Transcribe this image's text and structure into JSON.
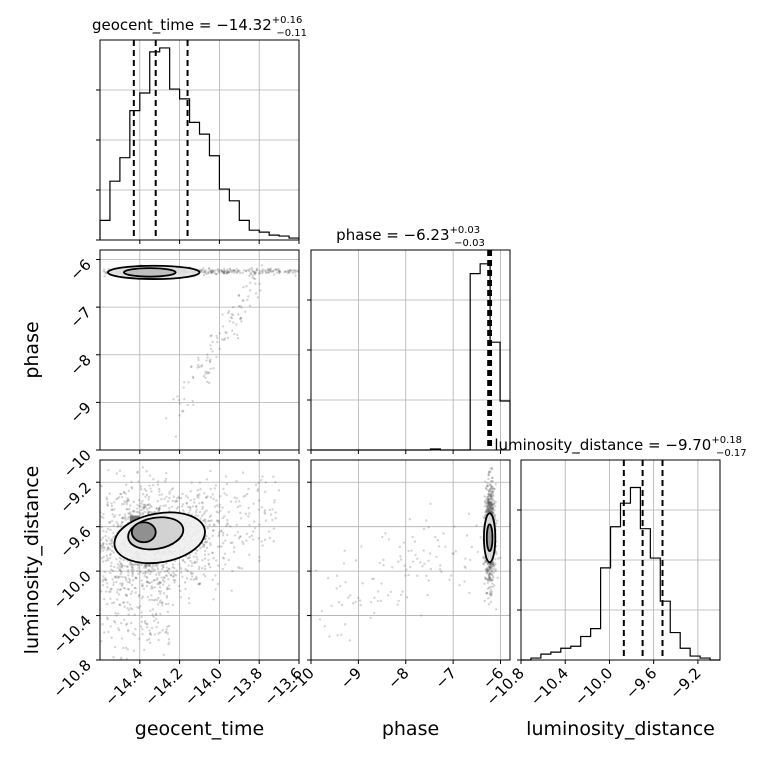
{
  "chart_data": {
    "type": "corner",
    "parameters": [
      {
        "name": "geocent_time",
        "label": "geocent_time",
        "median": "−14.32",
        "plus": "+0.16",
        "minus": "−0.11",
        "range": [
          -14.6,
          -13.6
        ],
        "ticks": [
          -14.4,
          -14.2,
          -14.0,
          -13.8,
          -13.6
        ],
        "tick_labels": [
          "−14.4",
          "−14.2",
          "−14.0",
          "−13.8",
          "−13.6"
        ],
        "quantiles": [
          -14.43,
          -14.32,
          -14.16
        ]
      },
      {
        "name": "phase",
        "label": "phase",
        "median": "−6.23",
        "plus": "+0.03",
        "minus": "−0.03",
        "range": [
          -10.0,
          -5.8
        ],
        "ticks": [
          -10,
          -9,
          -8,
          -7,
          -6
        ],
        "tick_labels": [
          "−10",
          "−9",
          "−8",
          "−7",
          "−6"
        ],
        "quantiles": [
          -6.26,
          -6.23,
          -6.2
        ]
      },
      {
        "name": "luminosity_distance",
        "label": "luminosity_distance",
        "median": "−9.70",
        "plus": "+0.18",
        "minus": "−0.17",
        "range": [
          -10.8,
          -9.0
        ],
        "ticks": [
          -10.8,
          -10.4,
          -10.0,
          -9.6,
          -9.2
        ],
        "tick_labels": [
          "−10.8",
          "−10.4",
          "−10.0",
          "−9.6",
          "−9.2"
        ],
        "quantiles": [
          -9.87,
          -9.7,
          -9.52
        ]
      }
    ],
    "histograms": {
      "geocent_time": [
        0.1,
        0.3,
        0.42,
        0.66,
        0.75,
        0.96,
        0.98,
        0.77,
        0.72,
        0.6,
        0.54,
        0.43,
        0.26,
        0.2,
        0.1,
        0.05,
        0.04,
        0.025,
        0.02,
        0.01
      ],
      "phase": [
        0,
        0,
        0,
        0,
        0,
        0,
        0,
        0,
        0,
        0,
        0,
        0,
        0.005,
        0,
        0,
        0,
        0.9,
        0.95,
        0.55,
        0.25
      ],
      "luminosity_distance": [
        0.0,
        0.01,
        0.03,
        0.04,
        0.06,
        0.07,
        0.12,
        0.16,
        0.47,
        0.68,
        0.8,
        0.88,
        0.67,
        0.52,
        0.3,
        0.14,
        0.06,
        0.02,
        0.01,
        0.0
      ]
    },
    "grid": true
  }
}
